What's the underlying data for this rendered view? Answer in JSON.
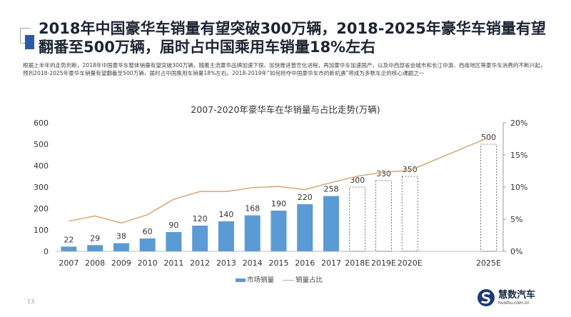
{
  "header": {
    "title": "2018年中国豪华车销量有望突破300万辆，2018-2025年豪华车销量有望翻番至500万辆，届时占中国乘用车销量18%左右",
    "description": "根据上半年的走势判断，2018年中国豪华车整体销量有望突破300万辆，随着主流豪华品牌加速下探、加快推进普世化进程，再加豪华车加速国产，以及中西部省会城市和长江中游、西南地区等豪华车消费的不断兴起，预判2018-2025年豪华车销量有望翻番至500万辆，届时占中国乘用车销量18%左右。2018-2019年“如何抢夺中国豪华车市的新机遇”将成为多数车企的核心课题之一"
  },
  "chart_data": {
    "type": "bar",
    "title": "2007-2020年豪华车在华销量与占比走势(万辆)",
    "categories": [
      "2007",
      "2008",
      "2009",
      "2010",
      "2011",
      "2012",
      "2013",
      "2014",
      "2015",
      "2016",
      "2017",
      "2018E",
      "2019E",
      "2020E",
      "2025E"
    ],
    "series": [
      {
        "name": "市场销量",
        "type": "bar",
        "axis": "left",
        "values": [
          22,
          29,
          38,
          60,
          90,
          120,
          140,
          168,
          190,
          220,
          258,
          300,
          330,
          350,
          500
        ],
        "estimated": [
          false,
          false,
          false,
          false,
          false,
          false,
          false,
          false,
          false,
          false,
          false,
          true,
          true,
          true,
          true
        ],
        "color": "#5b9bd5"
      },
      {
        "name": "销量占比",
        "type": "line",
        "axis": "right",
        "unit": "%",
        "values": [
          4.7,
          5.5,
          4.4,
          5.7,
          8.1,
          9.3,
          9.3,
          9.9,
          10.1,
          9.6,
          10.7,
          11.7,
          12.3,
          12.6,
          17.7
        ],
        "color": "#d4a77a"
      }
    ],
    "left_axis": {
      "ylim": [
        0,
        600
      ],
      "ticks": [
        "0",
        "100",
        "200",
        "300",
        "400",
        "500",
        "600"
      ]
    },
    "right_axis": {
      "ylim": [
        0,
        20
      ],
      "ticks": [
        "0%",
        "5%",
        "10%",
        "15%",
        "20%"
      ]
    },
    "grid": false,
    "legend": "bottom"
  },
  "page_number": "13",
  "logo": {
    "name": "慧数汽车",
    "url": "huishu.com.cn"
  }
}
